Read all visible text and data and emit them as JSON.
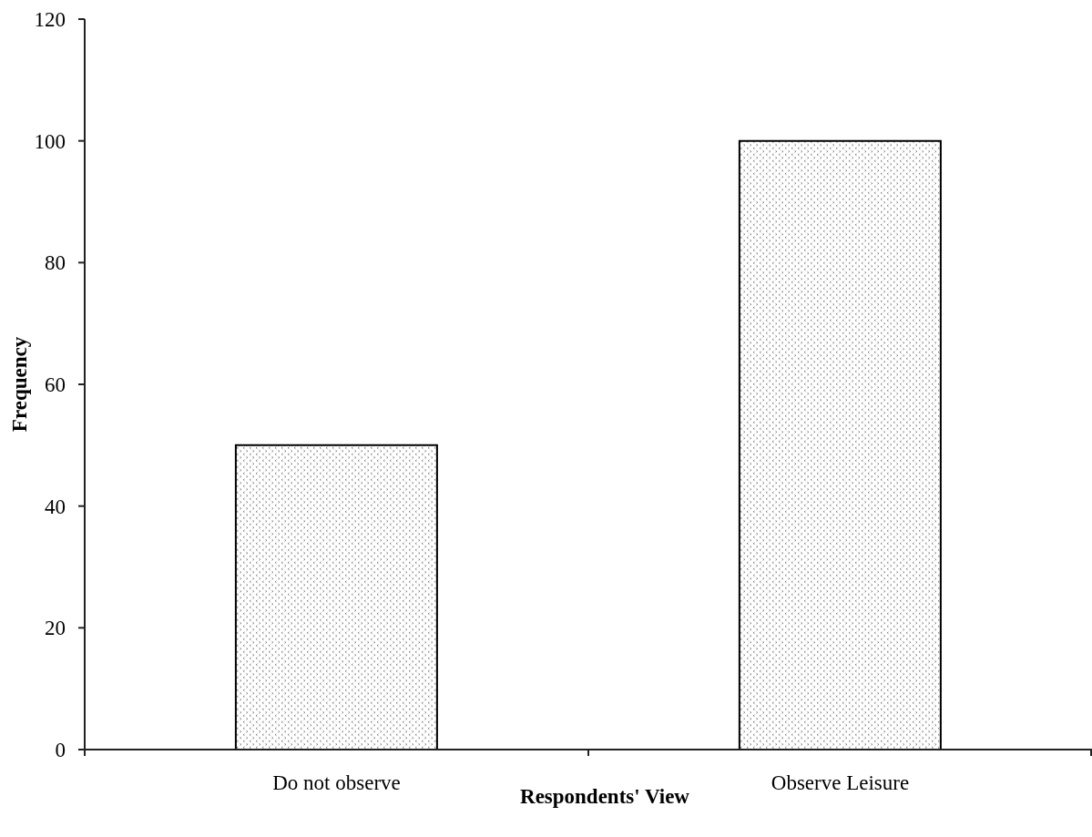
{
  "chart_data": {
    "type": "bar",
    "categories": [
      "Do not observe",
      "Observe Leisure"
    ],
    "values": [
      50,
      100
    ],
    "color": "#000000",
    "xlabel": "Respondents' View",
    "ylabel": "Frequency",
    "ylim": [
      0,
      120
    ],
    "yticks": [
      0,
      20,
      40,
      60,
      80,
      100,
      120
    ]
  }
}
